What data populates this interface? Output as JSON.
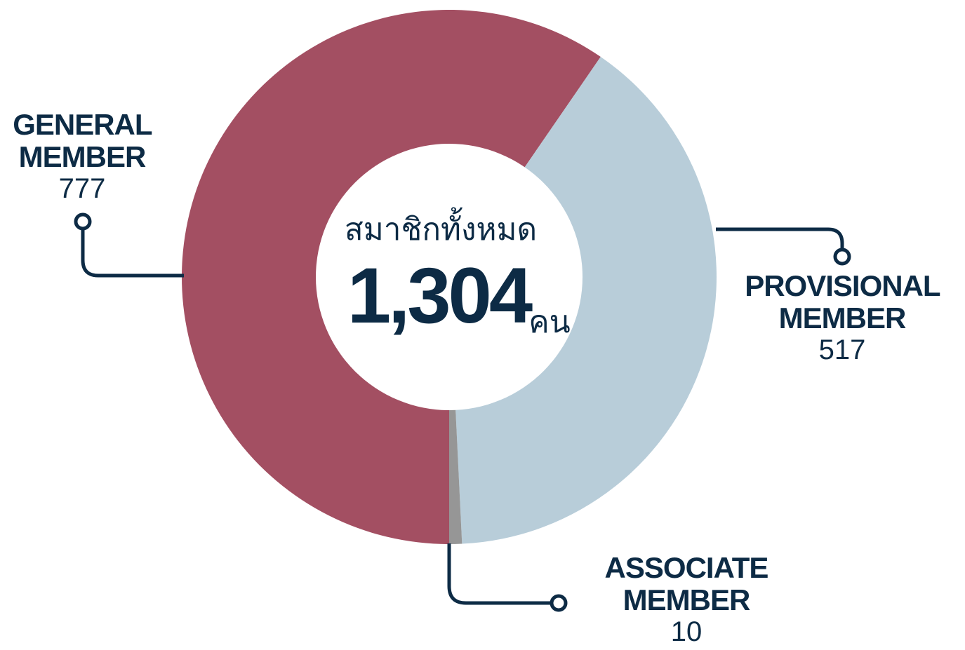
{
  "chart_data": {
    "type": "donut",
    "categories": [
      "GENERAL MEMBER",
      "PROVISIONAL MEMBER",
      "ASSOCIATE MEMBER"
    ],
    "values": [
      777,
      517,
      10
    ],
    "colors": [
      "#a34f62",
      "#b8cdd9",
      "#969696"
    ],
    "center_title": "สมาชิกทั้งหมด",
    "total_label": "1,304",
    "unit": "คน"
  }
}
